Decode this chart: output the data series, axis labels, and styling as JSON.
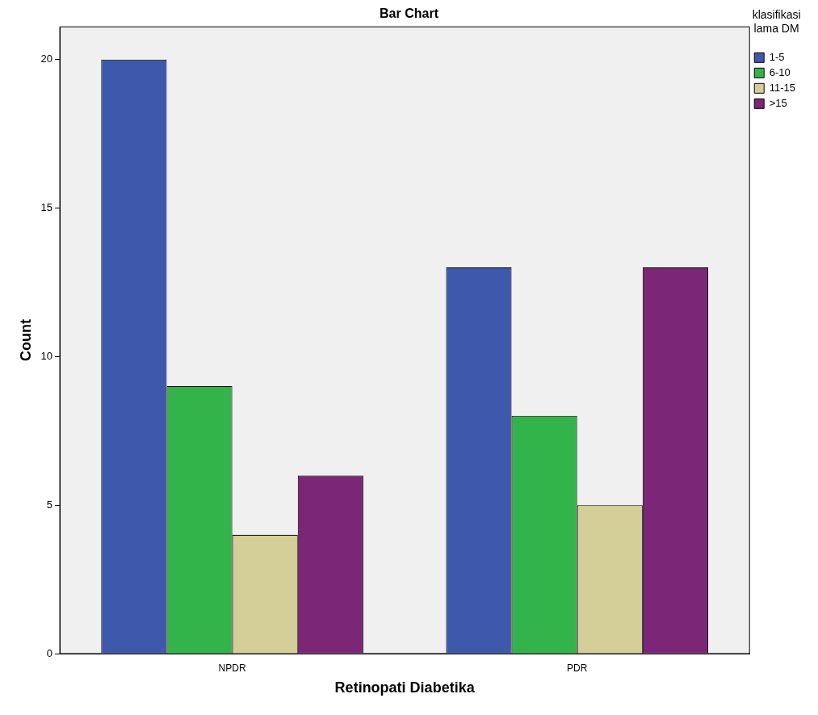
{
  "chart_data": {
    "type": "bar",
    "title": "Bar Chart",
    "xlabel": "Retinopati Diabetika",
    "ylabel": "Count",
    "legend_title": "klasifikasi lama DM",
    "categories": [
      "NPDR",
      "PDR"
    ],
    "series": [
      {
        "name": "1-5",
        "color": "#3e58ac",
        "values": [
          20,
          13
        ]
      },
      {
        "name": "6-10",
        "color": "#33b44a",
        "values": [
          9,
          8
        ]
      },
      {
        "name": "11-15",
        "color": "#d4ce98",
        "values": [
          4,
          5
        ]
      },
      {
        "name": ">15",
        "color": "#7c2678",
        "values": [
          6,
          13
        ]
      }
    ],
    "ylim": [
      0,
      21.1
    ],
    "yticks": [
      0,
      5,
      10,
      15,
      20
    ],
    "grid": false,
    "legend": "top right"
  }
}
